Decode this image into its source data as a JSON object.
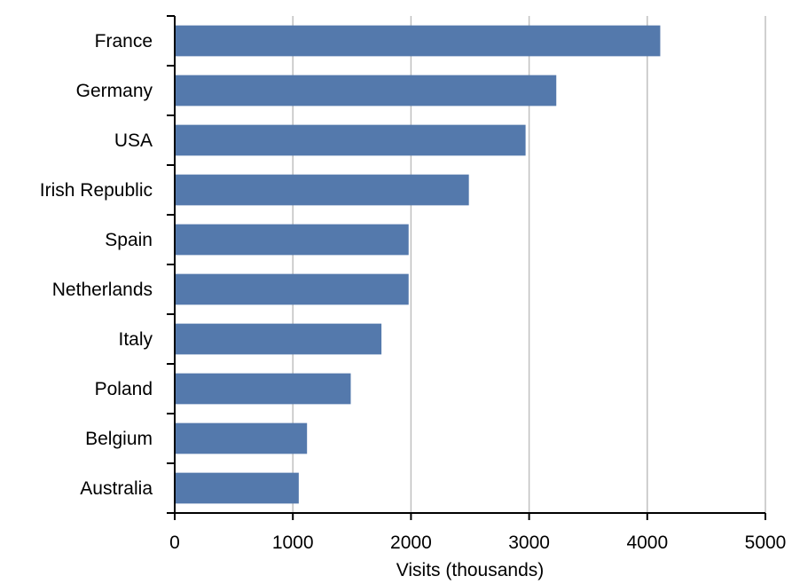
{
  "chart_data": {
    "type": "bar",
    "orientation": "horizontal",
    "categories": [
      "France",
      "Germany",
      "USA",
      "Irish Republic",
      "Spain",
      "Netherlands",
      "Italy",
      "Poland",
      "Belgium",
      "Australia"
    ],
    "values": [
      4110,
      3230,
      2970,
      2490,
      1980,
      1980,
      1750,
      1490,
      1120,
      1050
    ],
    "title": "",
    "xlabel": "Visits (thousands)",
    "ylabel": "",
    "xlim": [
      0,
      5000
    ],
    "x_ticks": [
      "0",
      "1000",
      "2000",
      "3000",
      "4000",
      "5000"
    ],
    "grid": "vertical",
    "legend": "none",
    "bar_color": "#5479ac"
  }
}
